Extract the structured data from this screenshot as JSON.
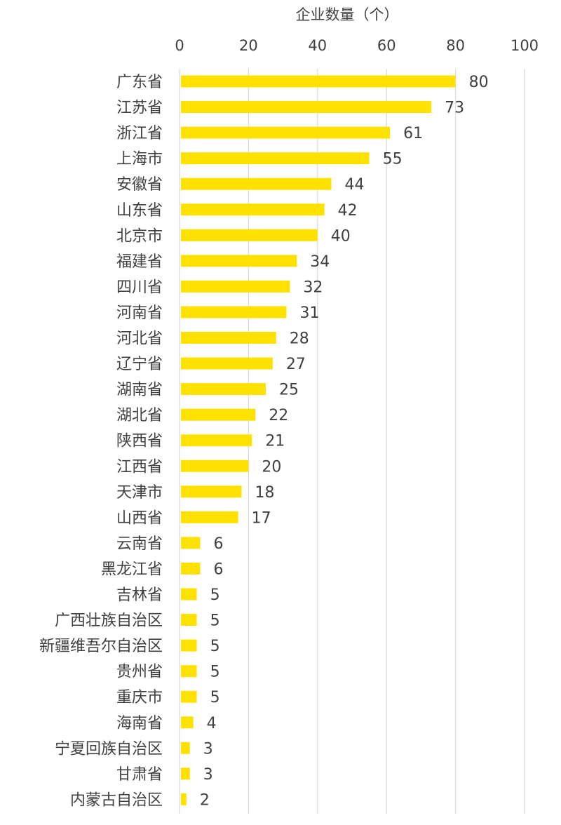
{
  "chart_data": {
    "type": "bar",
    "orientation": "horizontal",
    "title": "",
    "xlabel": "企业数量（个）",
    "ylabel": "",
    "xlim": [
      0,
      100
    ],
    "xticks": [
      0,
      20,
      40,
      60,
      80,
      100
    ],
    "x_axis_position": "top",
    "grid": true,
    "legend": "none",
    "bar_color": "#FFE100",
    "categories": [
      "广东省",
      "江苏省",
      "浙江省",
      "上海市",
      "安徽省",
      "山东省",
      "北京市",
      "福建省",
      "四川省",
      "河南省",
      "河北省",
      "辽宁省",
      "湖南省",
      "湖北省",
      "陕西省",
      "江西省",
      "天津市",
      "山西省",
      "云南省",
      "黑龙江省",
      "吉林省",
      "广西壮族自治区",
      "新疆维吾尔自治区",
      "贵州省",
      "重庆市",
      "海南省",
      "宁夏回族自治区",
      "甘肃省",
      "内蒙古自治区"
    ],
    "values": [
      80,
      73,
      61,
      55,
      44,
      42,
      40,
      34,
      32,
      31,
      28,
      27,
      25,
      22,
      21,
      20,
      18,
      17,
      6,
      6,
      5,
      5,
      5,
      5,
      5,
      4,
      3,
      3,
      2
    ],
    "data_labels": true
  }
}
